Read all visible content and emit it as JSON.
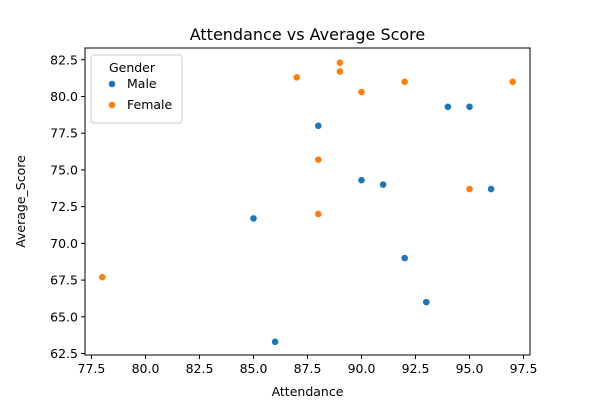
{
  "chart_data": {
    "type": "scatter",
    "title": "Attendance vs Average Score",
    "xlabel": "Attendance",
    "ylabel": "Average_Score",
    "xlim": [
      77.2,
      97.8
    ],
    "ylim": [
      62.4,
      83.3
    ],
    "xticks": [
      77.5,
      80.0,
      82.5,
      85.0,
      87.5,
      90.0,
      92.5,
      95.0,
      97.5
    ],
    "xtick_labels": [
      "77.5",
      "80.0",
      "82.5",
      "85.0",
      "87.5",
      "90.0",
      "92.5",
      "95.0",
      "97.5"
    ],
    "yticks": [
      62.5,
      65.0,
      67.5,
      70.0,
      72.5,
      75.0,
      77.5,
      80.0,
      82.5
    ],
    "ytick_labels": [
      "62.5",
      "65.0",
      "67.5",
      "70.0",
      "72.5",
      "75.0",
      "77.5",
      "80.0",
      "82.5"
    ],
    "grid": false,
    "legend": {
      "title": "Gender",
      "position": "top-left"
    },
    "series": [
      {
        "name": "Male",
        "color": "#1f77b4",
        "points": [
          {
            "x": 88,
            "y": 78.0
          },
          {
            "x": 94,
            "y": 79.3
          },
          {
            "x": 95,
            "y": 79.3
          },
          {
            "x": 90,
            "y": 74.3
          },
          {
            "x": 91,
            "y": 74.0
          },
          {
            "x": 96,
            "y": 73.7
          },
          {
            "x": 85,
            "y": 71.7
          },
          {
            "x": 92,
            "y": 69.0
          },
          {
            "x": 93,
            "y": 66.0
          },
          {
            "x": 86,
            "y": 63.3
          }
        ]
      },
      {
        "name": "Female",
        "color": "#ff7f0e",
        "points": [
          {
            "x": 89,
            "y": 82.3
          },
          {
            "x": 89,
            "y": 81.7
          },
          {
            "x": 87,
            "y": 81.3
          },
          {
            "x": 92,
            "y": 81.0
          },
          {
            "x": 97,
            "y": 81.0
          },
          {
            "x": 90,
            "y": 80.3
          },
          {
            "x": 88,
            "y": 75.7
          },
          {
            "x": 95,
            "y": 73.7
          },
          {
            "x": 88,
            "y": 72.0
          },
          {
            "x": 78,
            "y": 67.7
          }
        ]
      }
    ]
  }
}
